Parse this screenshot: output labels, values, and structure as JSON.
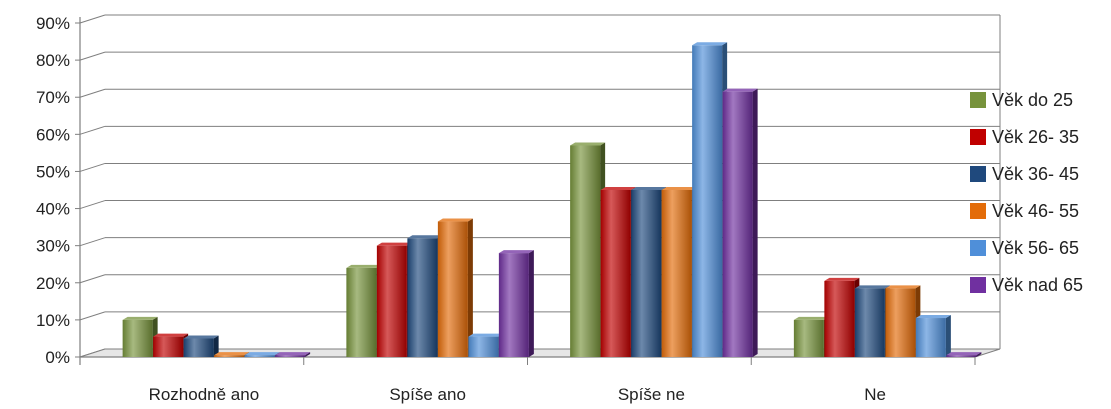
{
  "chart_data": {
    "type": "bar",
    "title": "",
    "xlabel": "",
    "ylabel": "",
    "categories": [
      "Rozhodně ano",
      "Spíše ano",
      "Spíše ne",
      "Ne"
    ],
    "ylim": [
      0,
      90
    ],
    "yticks": [
      "0%",
      "10%",
      "20%",
      "30%",
      "40%",
      "50%",
      "60%",
      "70%",
      "80%",
      "90%"
    ],
    "grid": true,
    "legend_position": "right",
    "series": [
      {
        "name": "Věk do 25",
        "color": "#77933c",
        "values": [
          10,
          24,
          57,
          10
        ]
      },
      {
        "name": "Věk 26- 35",
        "color": "#c00000",
        "values": [
          5.5,
          30,
          45,
          20.5
        ]
      },
      {
        "name": "Věk 36- 45",
        "color": "#1f497d",
        "values": [
          5,
          32,
          45,
          18.5
        ]
      },
      {
        "name": "Věk 46- 55",
        "color": "#e36c09",
        "values": [
          0.5,
          36.5,
          45,
          18.5
        ]
      },
      {
        "name": "Věk 56- 65",
        "color": "#4f8fd9",
        "values": [
          0.5,
          5.5,
          84,
          10.5
        ]
      },
      {
        "name": "Věk nad 65",
        "color": "#7030a0",
        "values": [
          0.5,
          28,
          71.5,
          0.5
        ]
      }
    ]
  }
}
